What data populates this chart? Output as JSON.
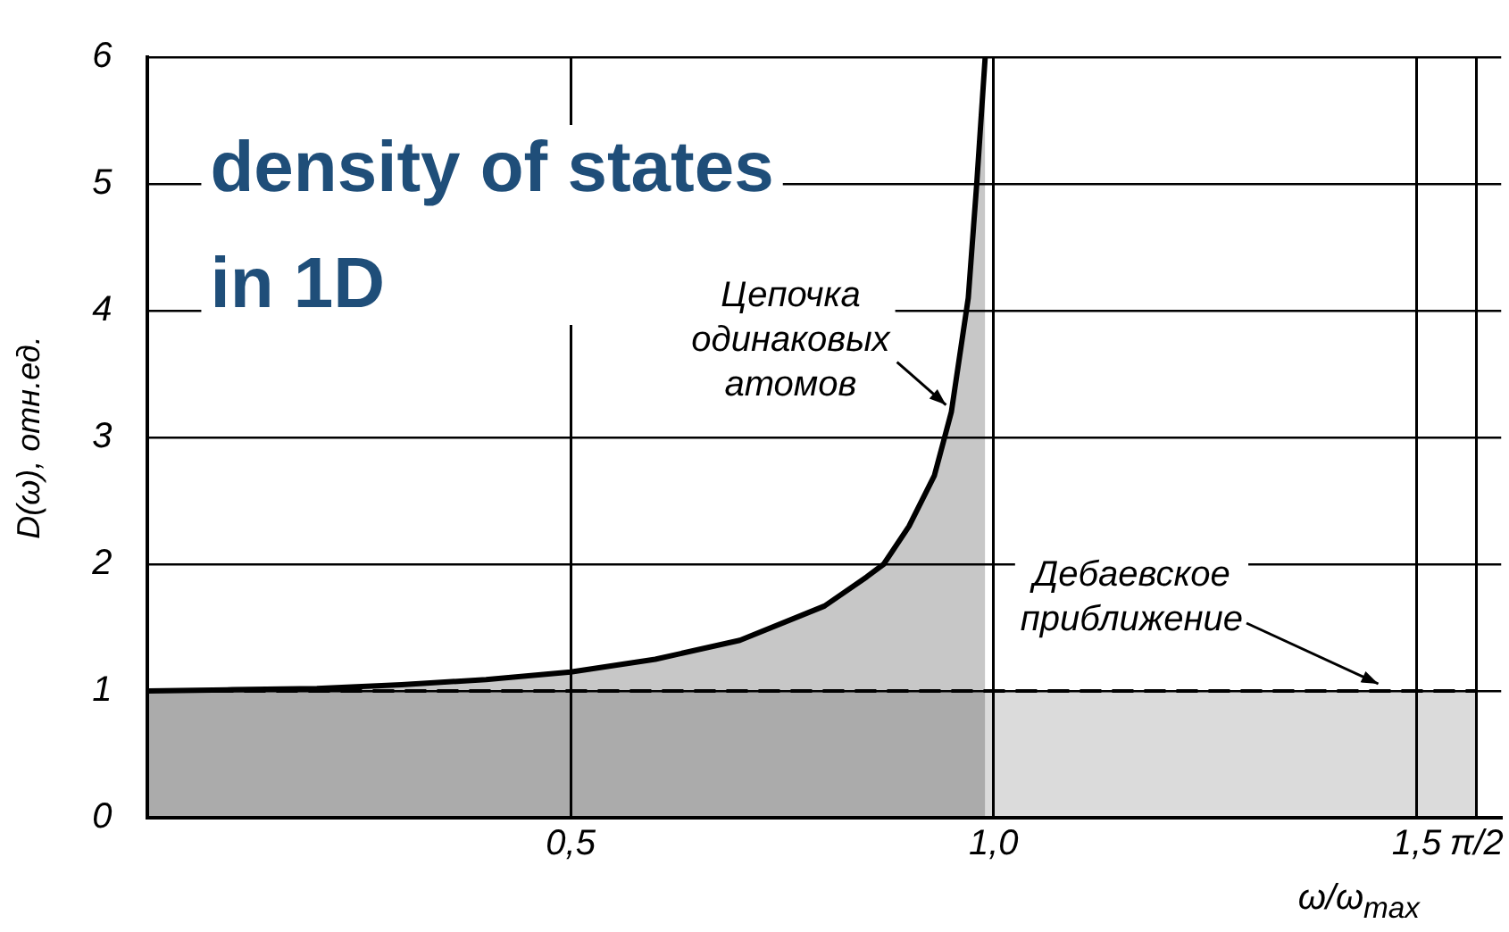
{
  "chart_data": {
    "type": "area",
    "title": "density of states in 1D",
    "xlabel": "ω/ω$_{max}$",
    "ylabel": "D(ω), отн.ед.",
    "series": [
      {
        "name": "Цепочка одинаковых атомов",
        "color": "#000000",
        "x": [
          0,
          0.1,
          0.2,
          0.3,
          0.4,
          0.5,
          0.6,
          0.7,
          0.8,
          0.85,
          0.87,
          0.9,
          0.93,
          0.95,
          0.97,
          0.98,
          0.99
        ],
        "values": [
          1,
          1.01,
          1.02,
          1.05,
          1.09,
          1.15,
          1.25,
          1.4,
          1.67,
          1.9,
          2,
          2.3,
          2.7,
          3.2,
          4.1,
          5,
          6
        ]
      },
      {
        "name": "Дебаевское приближение",
        "color": "#000000",
        "type": "area",
        "line_style": "dashed",
        "x": [
          0,
          1.571
        ],
        "values": [
          1,
          1
        ]
      }
    ],
    "xlim": [
      0,
      1.6
    ],
    "ylim": [
      0,
      6
    ],
    "xticks": [
      {
        "value": 0.5,
        "label": "0,5"
      },
      {
        "value": 1,
        "label": "1,0"
      },
      {
        "value": 1.5,
        "label": "1,5"
      },
      {
        "value": 1.571,
        "label": "π/2"
      }
    ],
    "yticks": [
      0,
      1,
      2,
      3,
      4,
      5,
      6
    ],
    "grid": true,
    "legend": false
  }
}
